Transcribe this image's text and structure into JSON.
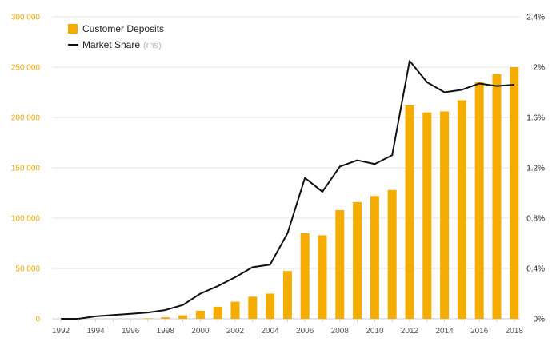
{
  "chart_data": {
    "type": "bar+line",
    "x": [
      1992,
      1993,
      1994,
      1995,
      1996,
      1997,
      1998,
      1999,
      2000,
      2001,
      2002,
      2003,
      2004,
      2005,
      2006,
      2007,
      2008,
      2009,
      2010,
      2011,
      2012,
      2013,
      2014,
      2015,
      2016,
      2017,
      2018
    ],
    "x_tick_labels": [
      "1992",
      "1994",
      "1996",
      "1998",
      "2000",
      "2002",
      "2004",
      "2006",
      "2008",
      "2010",
      "2012",
      "2014",
      "2016",
      "2018"
    ],
    "series": [
      {
        "name": "Customer Deposits",
        "axis": "left",
        "kind": "bar",
        "values": [
          0,
          0,
          0,
          0,
          0,
          500,
          1500,
          3500,
          8000,
          12000,
          17000,
          22000,
          25000,
          47500,
          85000,
          83000,
          108000,
          116000,
          122000,
          128000,
          212000,
          205000,
          206000,
          217000,
          235000,
          243000,
          250000
        ]
      },
      {
        "name": "Market Share",
        "name_suffix": "(rhs)",
        "axis": "right",
        "kind": "line",
        "values": [
          0.0,
          0.0,
          0.02,
          0.03,
          0.04,
          0.05,
          0.07,
          0.11,
          0.2,
          0.26,
          0.33,
          0.41,
          0.43,
          0.68,
          1.12,
          1.01,
          1.21,
          1.26,
          1.23,
          1.3,
          2.05,
          1.88,
          1.8,
          1.82,
          1.87,
          1.85,
          1.86
        ]
      }
    ],
    "left_axis": {
      "min": 0,
      "max": 300000,
      "ticks": [
        "0",
        "50 000",
        "100 000",
        "150 000",
        "200 000",
        "250 000",
        "300 000"
      ],
      "tick_values": [
        0,
        50000,
        100000,
        150000,
        200000,
        250000,
        300000
      ]
    },
    "right_axis": {
      "min": 0,
      "max": 2.4,
      "ticks": [
        "0%",
        "0.4%",
        "0.8%",
        "1.2%",
        "1.6%",
        "2%",
        "2.4%"
      ],
      "tick_values": [
        0,
        0.4,
        0.8,
        1.2,
        1.6,
        2.0,
        2.4
      ]
    },
    "grid": true,
    "legend_position": "top-left",
    "colors": {
      "bar": "#f5ac00",
      "line": "#111111",
      "grid": "#e6e6e6",
      "left_ticks": "#f2a900"
    }
  }
}
